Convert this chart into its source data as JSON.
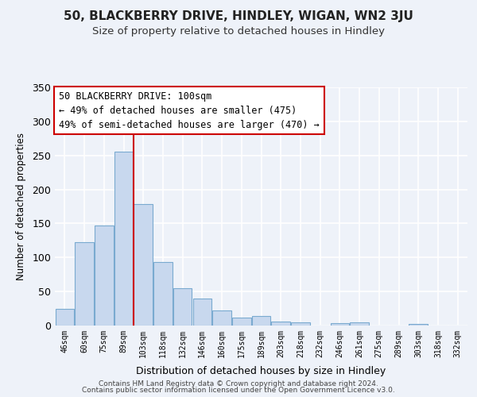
{
  "title": "50, BLACKBERRY DRIVE, HINDLEY, WIGAN, WN2 3JU",
  "subtitle": "Size of property relative to detached houses in Hindley",
  "xlabel": "Distribution of detached houses by size in Hindley",
  "ylabel": "Number of detached properties",
  "bar_color": "#c8d8ee",
  "bar_edge_color": "#7aaad0",
  "categories": [
    "46sqm",
    "60sqm",
    "75sqm",
    "89sqm",
    "103sqm",
    "118sqm",
    "132sqm",
    "146sqm",
    "160sqm",
    "175sqm",
    "189sqm",
    "203sqm",
    "218sqm",
    "232sqm",
    "246sqm",
    "261sqm",
    "275sqm",
    "289sqm",
    "303sqm",
    "318sqm",
    "332sqm"
  ],
  "values": [
    24,
    122,
    147,
    256,
    178,
    93,
    55,
    40,
    22,
    12,
    14,
    6,
    5,
    0,
    4,
    5,
    0,
    0,
    2,
    0,
    0
  ],
  "vline_x_index": 3,
  "vline_color": "#cc0000",
  "ylim": [
    0,
    350
  ],
  "yticks": [
    0,
    50,
    100,
    150,
    200,
    250,
    300,
    350
  ],
  "annotation_line1": "50 BLACKBERRY DRIVE: 100sqm",
  "annotation_line2": "← 49% of detached houses are smaller (475)",
  "annotation_line3": "49% of semi-detached houses are larger (470) →",
  "annotation_box_color": "#ffffff",
  "annotation_box_edge": "#cc0000",
  "footer_line1": "Contains HM Land Registry data © Crown copyright and database right 2024.",
  "footer_line2": "Contains public sector information licensed under the Open Government Licence v3.0.",
  "background_color": "#eef2f9",
  "grid_color": "#ffffff",
  "title_color": "#222222",
  "subtitle_color": "#333333"
}
